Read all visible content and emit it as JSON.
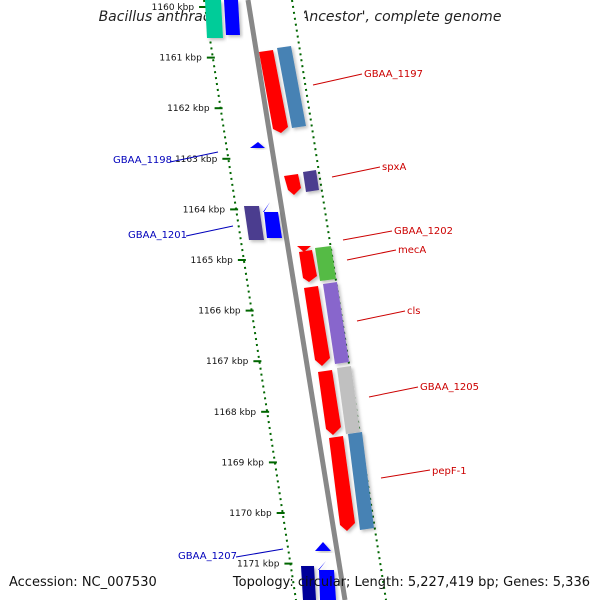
{
  "title": "Bacillus anthracis str. 'Ames Ancestor', complete genome",
  "footer": {
    "accession": "Accession: NC_007530",
    "topology": "Topology: circular; Length: 5,227,419 bp; Genes: 5,336"
  },
  "ticks": [
    "1160 kbp",
    "1161 kbp",
    "1162 kbp",
    "1163 kbp",
    "1164 kbp",
    "1165 kbp",
    "1166 kbp",
    "1167 kbp",
    "1168 kbp",
    "1169 kbp",
    "1170 kbp",
    "1171 kbp"
  ],
  "gene_labels_forward": [
    "GBAA_1197",
    "spxA",
    "GBAA_1202",
    "mecA",
    "cls",
    "GBAA_1205",
    "pepF-1"
  ],
  "gene_labels_reverse": [
    "GBAA_1198",
    "GBAA_1201",
    "GBAA_1207"
  ],
  "colors": {
    "forward_gene": "#ff0000",
    "reverse_gene": "#0000ff",
    "forward_label": "#cc0000",
    "reverse_label": "#0000bb",
    "tick": "#006600",
    "backbone": "#888888"
  }
}
